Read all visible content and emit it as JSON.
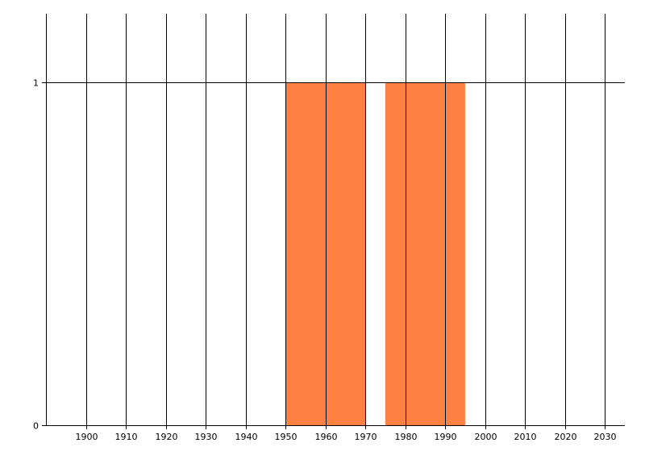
{
  "chart_data": {
    "type": "bar",
    "title": "",
    "xlabel": "",
    "ylabel": "",
    "xlim": [
      1890,
      2035
    ],
    "ylim": [
      0,
      1.2
    ],
    "grid": true,
    "x_ticks": [
      1900,
      1910,
      1920,
      1930,
      1940,
      1950,
      1960,
      1970,
      1980,
      1990,
      2000,
      2010,
      2020,
      2030
    ],
    "y_ticks": [
      0,
      1
    ],
    "bars": [
      {
        "x_start": 1950,
        "x_end": 1970,
        "value": 1
      },
      {
        "x_start": 1975,
        "x_end": 1995,
        "value": 1
      }
    ],
    "bar_color": "#FF8040",
    "axis_color": "#000000"
  }
}
